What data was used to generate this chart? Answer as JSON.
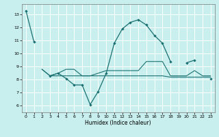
{
  "xlabel": "Humidex (Indice chaleur)",
  "xlim": [
    -0.5,
    23.5
  ],
  "ylim": [
    5.5,
    13.8
  ],
  "yticks": [
    6,
    7,
    8,
    9,
    10,
    11,
    12,
    13
  ],
  "xticks": [
    0,
    1,
    2,
    3,
    4,
    5,
    6,
    7,
    8,
    9,
    10,
    11,
    12,
    13,
    14,
    15,
    16,
    17,
    18,
    19,
    20,
    21,
    22,
    23
  ],
  "bg_color": "#c8eeee",
  "grid_color": "#ffffff",
  "line_color": "#1a7070",
  "line1_x": [
    0,
    1,
    3,
    4,
    5,
    6,
    7,
    8,
    9,
    10,
    11,
    12,
    13,
    14,
    15,
    16,
    17,
    18,
    20,
    21,
    23
  ],
  "line1_y": [
    13.3,
    10.9,
    8.3,
    8.5,
    8.1,
    7.6,
    7.6,
    6.1,
    7.1,
    8.5,
    10.8,
    11.9,
    12.4,
    12.6,
    12.2,
    11.4,
    10.8,
    9.4,
    9.3,
    9.5,
    8.1
  ],
  "line1_breaks": [
    1,
    18
  ],
  "line2_x": [
    2,
    3,
    4,
    5,
    6,
    7,
    8,
    9,
    10,
    11,
    12,
    13,
    14,
    15,
    16,
    17,
    18,
    19,
    20,
    21,
    22,
    23
  ],
  "line2_y": [
    8.8,
    8.3,
    8.5,
    8.8,
    8.8,
    8.3,
    8.3,
    8.5,
    8.7,
    8.7,
    8.7,
    8.7,
    8.7,
    9.4,
    9.4,
    9.4,
    8.3,
    8.3,
    8.3,
    8.7,
    8.3,
    8.3
  ],
  "line3_x": [
    2,
    3,
    4,
    5,
    6,
    7,
    8,
    9,
    10,
    11,
    12,
    13,
    14,
    15,
    16,
    17,
    18,
    19,
    20,
    21,
    22,
    23
  ],
  "line3_y": [
    8.8,
    8.3,
    8.3,
    8.3,
    8.3,
    8.3,
    8.3,
    8.3,
    8.3,
    8.3,
    8.3,
    8.3,
    8.3,
    8.3,
    8.3,
    8.3,
    8.2,
    8.2,
    8.2,
    8.2,
    8.2,
    8.2
  ]
}
